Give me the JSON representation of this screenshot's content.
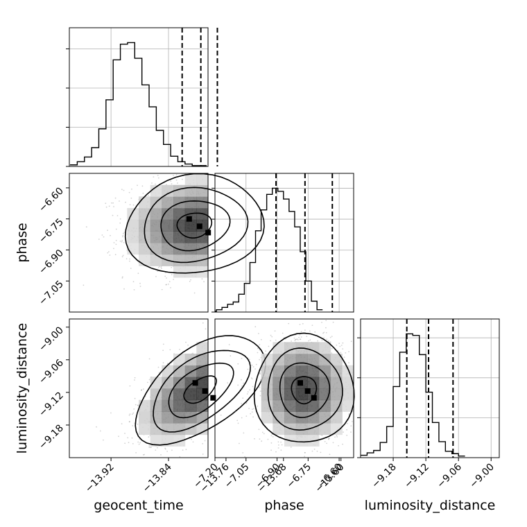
{
  "chart_data": [
    {
      "type": "histogram",
      "name": "geocent_time-marginal",
      "bins_start": -13.977,
      "bin_width": 0.01,
      "counts": [
        0.2,
        0.6,
        1.2,
        2.4,
        4.8,
        8.5,
        13.6,
        15.6,
        15.8,
        13.8,
        10.4,
        7.6,
        4.6,
        2.8,
        1.3,
        0.6,
        0.3,
        0.1,
        0.1
      ],
      "quantiles": [
        -13.821,
        -13.795,
        -13.772
      ],
      "xlim": [
        -13.978,
        -13.785
      ],
      "yticks": [
        0,
        5,
        10,
        15
      ],
      "grid": true
    },
    {
      "type": "histogram",
      "name": "phase-marginal",
      "bins_start": -7.22,
      "bin_width": 0.027,
      "counts": [
        0.1,
        0.3,
        0.6,
        1.0,
        1.3,
        2.3,
        3.7,
        6.4,
        10.5,
        13.2,
        15.2,
        16.0,
        15.6,
        14.6,
        13.0,
        11.0,
        7.8,
        4.0,
        1.4,
        0.3
      ],
      "quantiles": [
        -6.905,
        -6.765,
        -6.633
      ],
      "xlim": [
        -7.2,
        -6.53
      ],
      "yticks": [
        0,
        4,
        8,
        12,
        16
      ],
      "grid": true
    },
    {
      "type": "histogram",
      "name": "luminosity_distance-marginal",
      "bins_start": -9.24,
      "bin_width": 0.012,
      "counts": [
        0.3,
        0.6,
        0.9,
        1.9,
        3.9,
        8.9,
        13.2,
        15.5,
        15.3,
        12.9,
        8.2,
        4.4,
        2.0,
        0.8,
        0.5,
        0.2
      ],
      "quantiles": [
        -9.155,
        -9.115,
        -9.07
      ],
      "xlim": [
        -9.24,
        -8.985
      ],
      "yticks": [
        0,
        5,
        10,
        15
      ],
      "grid": true
    },
    {
      "type": "scatter-contour",
      "x_param": "geocent_time",
      "y_param": "phase",
      "center": [
        -13.804,
        -6.78
      ],
      "spread": [
        0.048,
        0.12
      ],
      "correlation": 0.1,
      "xlim": [
        -13.978,
        -13.785
      ],
      "ylim": [
        -7.2,
        -6.53
      ],
      "contour_levels_sigma": [
        0.5,
        1.0,
        1.5,
        2.0
      ],
      "yticks": [
        -6.6,
        -6.75,
        -6.9,
        -7.05
      ],
      "ytick_labels": [
        "−6.60",
        "−6.75",
        "−6.90",
        "−7.05"
      ]
    },
    {
      "type": "scatter-contour",
      "x_param": "geocent_time",
      "y_param": "luminosity_distance",
      "center": [
        -13.796,
        -9.115
      ],
      "spread": [
        0.045,
        0.05
      ],
      "correlation": 0.55,
      "xlim": [
        -13.978,
        -13.785
      ],
      "ylim": [
        -9.24,
        -8.985
      ],
      "contour_levels_sigma": [
        0.5,
        1.0,
        1.5,
        2.0
      ],
      "xticks": [
        -13.92,
        -13.84,
        -13.76,
        -13.68,
        -13.6
      ],
      "xtick_labels": [
        "−13.92",
        "−13.84",
        "−13.76",
        "−13.68",
        "−13.60"
      ],
      "yticks": [
        -9.0,
        -9.06,
        -9.12,
        -9.18
      ],
      "ytick_labels": [
        "−9.00",
        "−9.06",
        "−9.12",
        "−9.18"
      ]
    },
    {
      "type": "scatter-contour",
      "x_param": "phase",
      "y_param": "luminosity_distance",
      "center": [
        -6.77,
        -9.115
      ],
      "spread": [
        0.12,
        0.05
      ],
      "correlation": 0.0,
      "xlim": [
        -7.2,
        -6.53
      ],
      "ylim": [
        -9.24,
        -8.985
      ],
      "contour_levels_sigma": [
        0.5,
        1.0,
        1.5,
        2.0
      ],
      "xticks": [
        -7.2,
        -7.05,
        -6.9,
        -6.75,
        -6.6
      ],
      "xtick_labels": [
        "−7.20",
        "−7.05",
        "−6.90",
        "−6.75",
        "−6.60"
      ]
    }
  ],
  "panel3_xtick_labels": [
    "−9.18",
    "−9.12",
    "−9.06",
    "−9.00"
  ],
  "panel3_xticks": [
    -9.18,
    -9.12,
    -9.06,
    -9.0
  ],
  "labels": {
    "x1": "geocent_time",
    "x2": "phase",
    "x3": "luminosity_distance",
    "y_phase": "phase",
    "y_lum": "luminosity_distance"
  },
  "colors": {
    "line": "#000000",
    "grid": "#b0b0b0",
    "points": "#7f7f7f"
  }
}
